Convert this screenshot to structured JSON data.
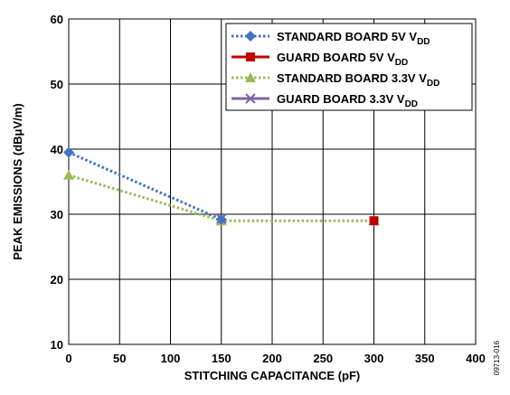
{
  "chart_data": {
    "type": "line",
    "xlabel": "STITCHING CAPACITANCE (pF)",
    "ylabel": "PEAK EMISSIONS (dBμV/m)",
    "xlim": [
      0,
      400
    ],
    "ylim": [
      10,
      60
    ],
    "x_ticks": [
      0,
      50,
      100,
      150,
      200,
      250,
      300,
      350,
      400
    ],
    "y_ticks": [
      10,
      20,
      30,
      40,
      50,
      60
    ],
    "grid": true,
    "legend_position": "top-right",
    "series": [
      {
        "name": "STANDARD BOARD 5V",
        "name_sub": "DD",
        "color": "#4472C4",
        "line_style": "dotted",
        "marker": "diamond",
        "x": [
          0,
          150
        ],
        "y": [
          39.5,
          29.2
        ]
      },
      {
        "name": "GUARD BOARD 5V",
        "name_sub": "DD",
        "color": "#C00000",
        "line_style": "solid",
        "marker": "square",
        "x": [
          300
        ],
        "y": [
          29.0
        ]
      },
      {
        "name": "STANDARD BOARD 3.3V",
        "name_sub": "DD",
        "color": "#9BBB59",
        "line_style": "dotted",
        "marker": "triangle",
        "x": [
          0,
          150,
          300
        ],
        "y": [
          36.0,
          29.0,
          29.0
        ]
      },
      {
        "name": "GUARD BOARD 3.3V",
        "name_sub": "DD",
        "color": "#8064A2",
        "line_style": "solid",
        "marker": "x",
        "x": [
          150
        ],
        "y": [
          29.3
        ]
      }
    ]
  },
  "figure_id": "09713-016"
}
